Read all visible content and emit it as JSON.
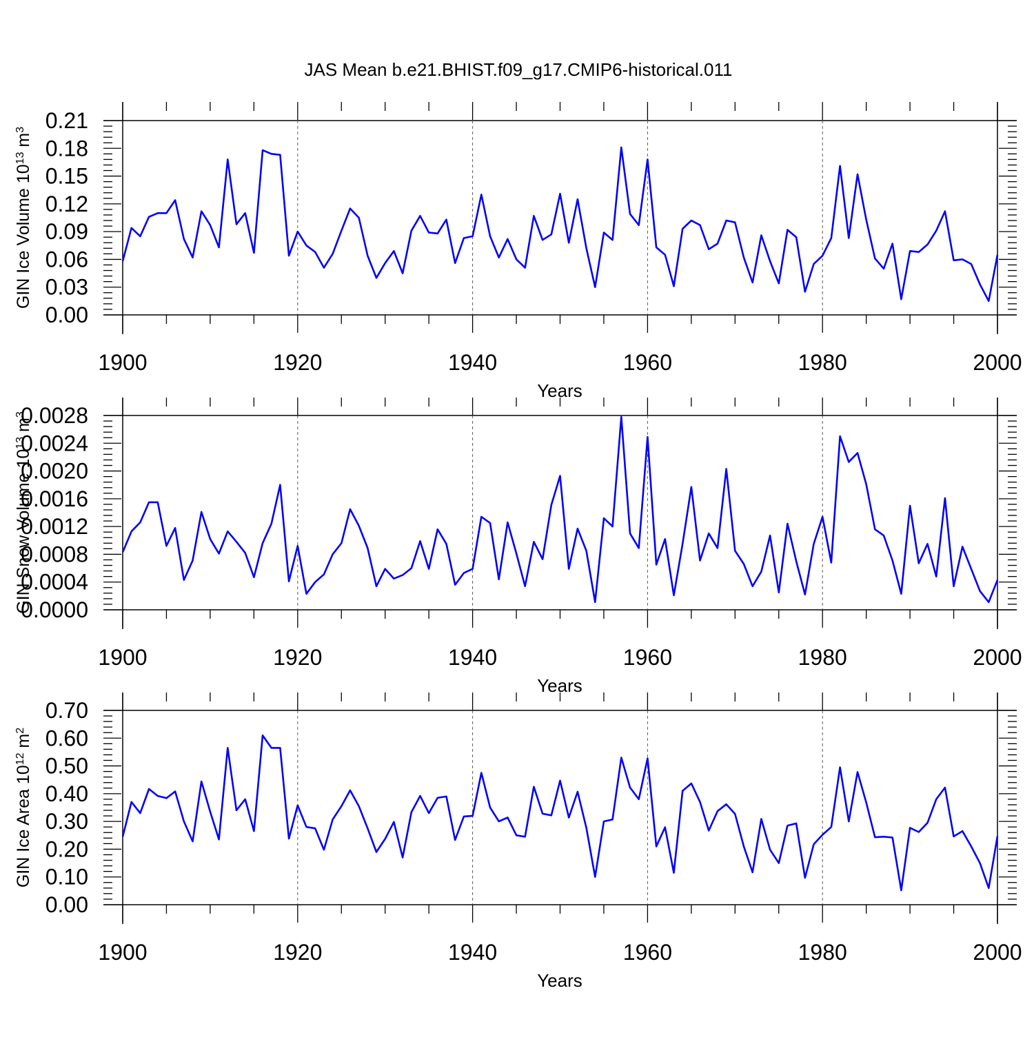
{
  "title": "JAS Mean b.e21.BHIST.f09_g17.CMIP6-historical.011",
  "colors": {
    "line": "#0000ff",
    "axis": "#000000",
    "grid": "#555555"
  },
  "chart_data": [
    {
      "type": "line",
      "name": "ice-volume",
      "ylabel_main": "GIN Ice Volume 10",
      "ylabel_exp": "13",
      "ylabel_unit": " m",
      "ylabel_unit_exp": "3",
      "xlabel": "Years",
      "xlim": [
        1900,
        2000
      ],
      "ylim": [
        0,
        0.21
      ],
      "xticks": [
        "1900",
        "1920",
        "1940",
        "1960",
        "1980",
        "2000"
      ],
      "yticks": [
        "0.00",
        "0.03",
        "0.06",
        "0.09",
        "0.12",
        "0.15",
        "0.18",
        "0.21"
      ],
      "x_start": 1900,
      "values": [
        0.058,
        0.094,
        0.085,
        0.106,
        0.11,
        0.11,
        0.124,
        0.082,
        0.062,
        0.112,
        0.097,
        0.073,
        0.168,
        0.098,
        0.11,
        0.067,
        0.178,
        0.174,
        0.173,
        0.064,
        0.09,
        0.075,
        0.068,
        0.051,
        0.066,
        0.091,
        0.115,
        0.105,
        0.064,
        0.04,
        0.056,
        0.069,
        0.045,
        0.091,
        0.107,
        0.089,
        0.088,
        0.103,
        0.056,
        0.083,
        0.085,
        0.13,
        0.085,
        0.062,
        0.082,
        0.06,
        0.051,
        0.107,
        0.081,
        0.087,
        0.131,
        0.078,
        0.125,
        0.072,
        0.03,
        0.089,
        0.081,
        0.181,
        0.109,
        0.097,
        0.168,
        0.073,
        0.065,
        0.031,
        0.093,
        0.102,
        0.097,
        0.071,
        0.077,
        0.102,
        0.1,
        0.062,
        0.035,
        0.086,
        0.058,
        0.034,
        0.092,
        0.084,
        0.025,
        0.055,
        0.064,
        0.083,
        0.161,
        0.083,
        0.152,
        0.103,
        0.061,
        0.05,
        0.077,
        0.017,
        0.069,
        0.068,
        0.076,
        0.091,
        0.112,
        0.059,
        0.06,
        0.055,
        0.033,
        0.015,
        0.065
      ]
    },
    {
      "type": "line",
      "name": "snow-volume",
      "ylabel_main": "GIN Snow Volume 10",
      "ylabel_exp": "13",
      "ylabel_unit": " m",
      "ylabel_unit_exp": "3",
      "xlabel": "Years",
      "xlim": [
        1900,
        2000
      ],
      "ylim": [
        0,
        0.0028
      ],
      "xticks": [
        "1900",
        "1920",
        "1940",
        "1960",
        "1980",
        "2000"
      ],
      "yticks": [
        "0.0000",
        "0.0004",
        "0.0008",
        "0.0012",
        "0.0016",
        "0.0020",
        "0.0024",
        "0.0028"
      ],
      "x_start": 1900,
      "values": [
        0.00083,
        0.00113,
        0.00126,
        0.00155,
        0.00155,
        0.00092,
        0.00118,
        0.00043,
        0.00071,
        0.00141,
        0.00102,
        0.00081,
        0.00113,
        0.00098,
        0.00082,
        0.00047,
        0.00096,
        0.00124,
        0.0018,
        0.00041,
        0.00092,
        0.00023,
        0.0004,
        0.00051,
        0.0008,
        0.00096,
        0.00145,
        0.00121,
        0.00089,
        0.00034,
        0.00059,
        0.00045,
        0.0005,
        0.0006,
        0.00099,
        0.00059,
        0.00116,
        0.00095,
        0.00036,
        0.00053,
        0.00059,
        0.00134,
        0.00125,
        0.00044,
        0.00126,
        0.00081,
        0.00034,
        0.00098,
        0.00073,
        0.00151,
        0.00193,
        0.00059,
        0.00117,
        0.00085,
        0.00011,
        0.00132,
        0.0012,
        0.00278,
        0.0011,
        0.00089,
        0.00249,
        0.00065,
        0.00102,
        0.00021,
        0.00095,
        0.00177,
        0.00071,
        0.0011,
        0.00089,
        0.00203,
        0.00085,
        0.00066,
        0.00034,
        0.00055,
        0.00107,
        0.00025,
        0.00124,
        0.0007,
        0.00022,
        0.00095,
        0.00134,
        0.00068,
        0.0025,
        0.00213,
        0.00226,
        0.00181,
        0.00116,
        0.00107,
        0.00071,
        0.00023,
        0.0015,
        0.00067,
        0.00095,
        0.00048,
        0.00161,
        0.00034,
        0.00091,
        0.00059,
        0.00027,
        0.00011,
        0.00043
      ]
    },
    {
      "type": "line",
      "name": "ice-area",
      "ylabel_main": "GIN Ice Area 10",
      "ylabel_exp": "12",
      "ylabel_unit": " m",
      "ylabel_unit_exp": "2",
      "xlabel": "Years",
      "xlim": [
        1900,
        2000
      ],
      "ylim": [
        0,
        0.7
      ],
      "xticks": [
        "1900",
        "1920",
        "1940",
        "1960",
        "1980",
        "2000"
      ],
      "yticks": [
        "0.00",
        "0.10",
        "0.20",
        "0.30",
        "0.40",
        "0.50",
        "0.60",
        "0.70"
      ],
      "x_start": 1900,
      "values": [
        0.245,
        0.37,
        0.33,
        0.417,
        0.392,
        0.384,
        0.408,
        0.3,
        0.228,
        0.444,
        0.335,
        0.235,
        0.565,
        0.34,
        0.38,
        0.265,
        0.61,
        0.565,
        0.565,
        0.238,
        0.358,
        0.28,
        0.275,
        0.198,
        0.307,
        0.355,
        0.412,
        0.355,
        0.275,
        0.19,
        0.237,
        0.298,
        0.17,
        0.333,
        0.392,
        0.33,
        0.385,
        0.39,
        0.233,
        0.318,
        0.32,
        0.475,
        0.35,
        0.3,
        0.314,
        0.25,
        0.245,
        0.425,
        0.328,
        0.322,
        0.447,
        0.314,
        0.407,
        0.277,
        0.1,
        0.3,
        0.307,
        0.53,
        0.422,
        0.38,
        0.527,
        0.21,
        0.279,
        0.115,
        0.41,
        0.437,
        0.37,
        0.267,
        0.337,
        0.362,
        0.327,
        0.21,
        0.117,
        0.309,
        0.198,
        0.15,
        0.285,
        0.293,
        0.097,
        0.218,
        0.252,
        0.28,
        0.495,
        0.3,
        0.478,
        0.368,
        0.243,
        0.245,
        0.242,
        0.052,
        0.277,
        0.262,
        0.295,
        0.38,
        0.422,
        0.246,
        0.265,
        0.21,
        0.15,
        0.06,
        0.247
      ]
    }
  ]
}
